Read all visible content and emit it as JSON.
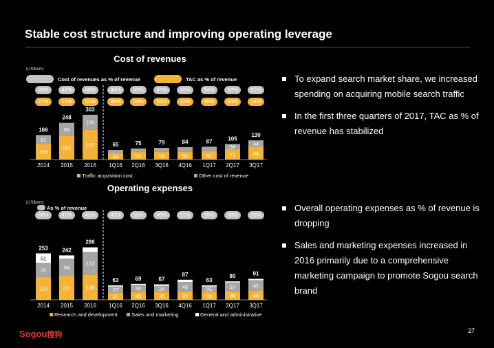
{
  "title": "Stable cost structure and improving operating leverage",
  "page_number": "27",
  "logo": {
    "brand_latin": "Sogou",
    "brand_cn": "搜狗"
  },
  "colors": {
    "orange": "#f5b335",
    "gray": "#a6a6a6",
    "lightgray": "#c3c3c3",
    "white": "#ffffff",
    "background": "#000000"
  },
  "bullets_top": [
    "To expand search market share, we increased spending on acquiring mobile search traffic",
    "In the first three quarters of 2017, TAC as % of revenue has stabilized"
  ],
  "bullets_bottom": [
    "Overall operating expenses as % of revenue is dropping",
    "Sales and marketing expenses increased in 2016 primarily due to a comprehensive marketing campaign to promote Sogou search brand"
  ],
  "chart_data": [
    {
      "type": "bar",
      "stacked": true,
      "title": "Cost of revenues",
      "unit": "(US$mm)",
      "categories": [
        "2014",
        "2015",
        "2016",
        "1Q16",
        "2Q16",
        "3Q16",
        "4Q16",
        "1Q17",
        "2Q17",
        "3Q17"
      ],
      "series": [
        {
          "name": "Traffic acquisition cost",
          "color": "orange",
          "values": [
            105,
            162,
            203,
            44,
            51,
            53,
            55,
            57,
            71,
            86
          ]
        },
        {
          "name": "Other cost of revenue",
          "color": "gray",
          "values": [
            61,
            86,
            100,
            21,
            24,
            26,
            29,
            30,
            34,
            44
          ]
        }
      ],
      "totals": [
        166,
        248,
        303,
        65,
        75,
        79,
        84,
        87,
        105,
        130
      ],
      "ratio_rows": [
        {
          "name": "Cost of revenues as % of revenue",
          "color": "lightgray",
          "values": [
            "43%",
            "42%",
            "46%",
            "44%",
            "43%",
            "47%",
            "49%",
            "54%",
            "50%",
            "51%"
          ]
        },
        {
          "name": "TAC as % of revenue",
          "color": "orange",
          "values": [
            "27%",
            "27%",
            "31%",
            "30%",
            "29%",
            "32%",
            "32%",
            "35%",
            "34%",
            "33%"
          ]
        }
      ],
      "legend": [
        "Traffic acquisition cost",
        "Other cost of revenue"
      ],
      "legend_position": "bottom"
    },
    {
      "type": "bar",
      "stacked": true,
      "title": "Operating expenses",
      "unit": "(US$mm)",
      "categories": [
        "2014",
        "2015",
        "2016",
        "1Q16",
        "2Q16",
        "3Q16",
        "4Q16",
        "1Q17",
        "2Q17",
        "3Q17"
      ],
      "series": [
        {
          "name": "Research and development",
          "color": "orange",
          "values": [
            124,
            131,
            138,
            31,
            35,
            35,
            37,
            33,
            38,
            40
          ]
        },
        {
          "name": "Sales and marketing",
          "color": "gray",
          "values": [
            78,
            94,
            123,
            27,
            30,
            26,
            40,
            25,
            37,
            45
          ]
        },
        {
          "name": "General and administrative",
          "color": "white",
          "values": [
            51,
            17,
            25,
            5,
            4,
            6,
            10,
            5,
            5,
            6
          ]
        }
      ],
      "totals": [
        253,
        242,
        286,
        63,
        69,
        67,
        87,
        63,
        80,
        91
      ],
      "ratio_rows": [
        {
          "name": "As % of revenue",
          "color": "lightgray",
          "values": [
            "65%",
            "41%",
            "43%",
            "43%",
            "39%",
            "40%",
            "51%",
            "39%",
            "38%",
            "35%"
          ]
        }
      ],
      "legend": [
        "Research and development",
        "Sales and marketing",
        "General and administrative"
      ],
      "legend_position": "bottom"
    }
  ]
}
